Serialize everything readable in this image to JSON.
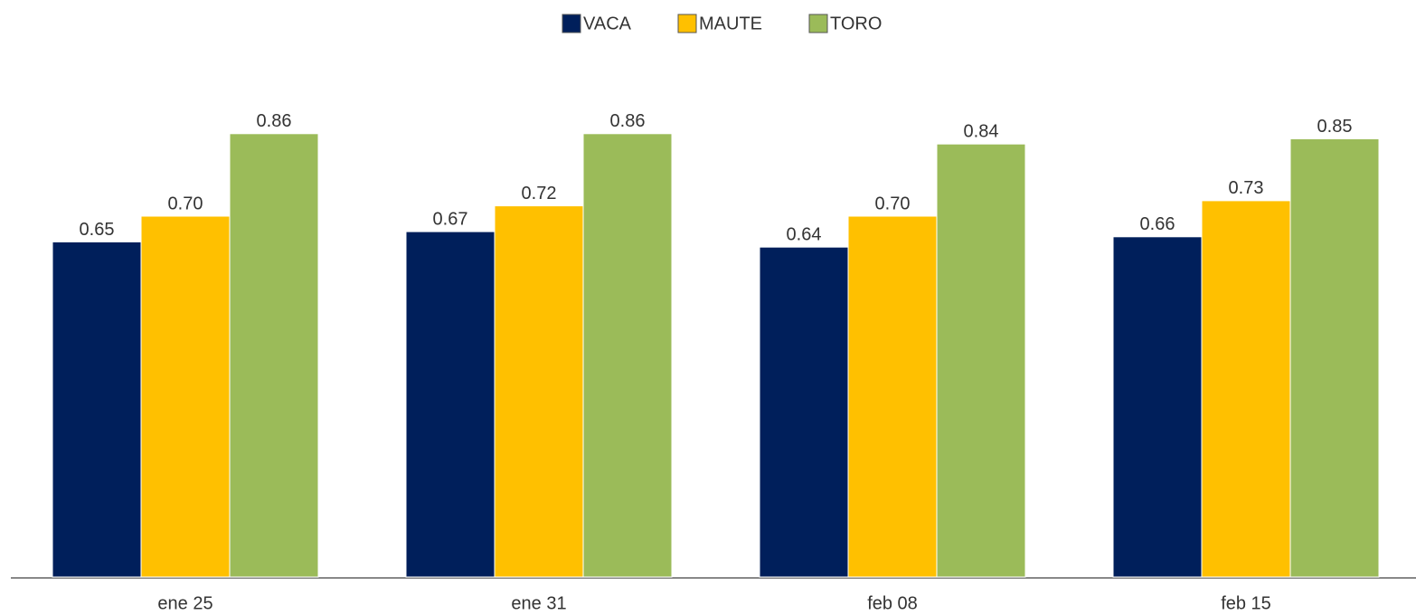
{
  "chart_data": {
    "type": "bar",
    "categories": [
      "ene 25",
      "ene 31",
      "feb 08",
      "feb 15"
    ],
    "series": [
      {
        "name": "VACA",
        "color": "#001f5b",
        "values": [
          0.65,
          0.67,
          0.64,
          0.66
        ],
        "value_labels": [
          "0.65",
          "0.67",
          "0.64",
          "0.66"
        ]
      },
      {
        "name": "MAUTE",
        "color": "#ffc000",
        "values": [
          0.7,
          0.72,
          0.7,
          0.73
        ],
        "value_labels": [
          "0.70",
          "0.72",
          "0.70",
          "0.73"
        ]
      },
      {
        "name": "TORO",
        "color": "#9bbb59",
        "values": [
          0.86,
          0.86,
          0.84,
          0.85
        ],
        "value_labels": [
          "0.86",
          "0.86",
          "0.84",
          "0.85"
        ]
      }
    ],
    "legend": "top"
  }
}
